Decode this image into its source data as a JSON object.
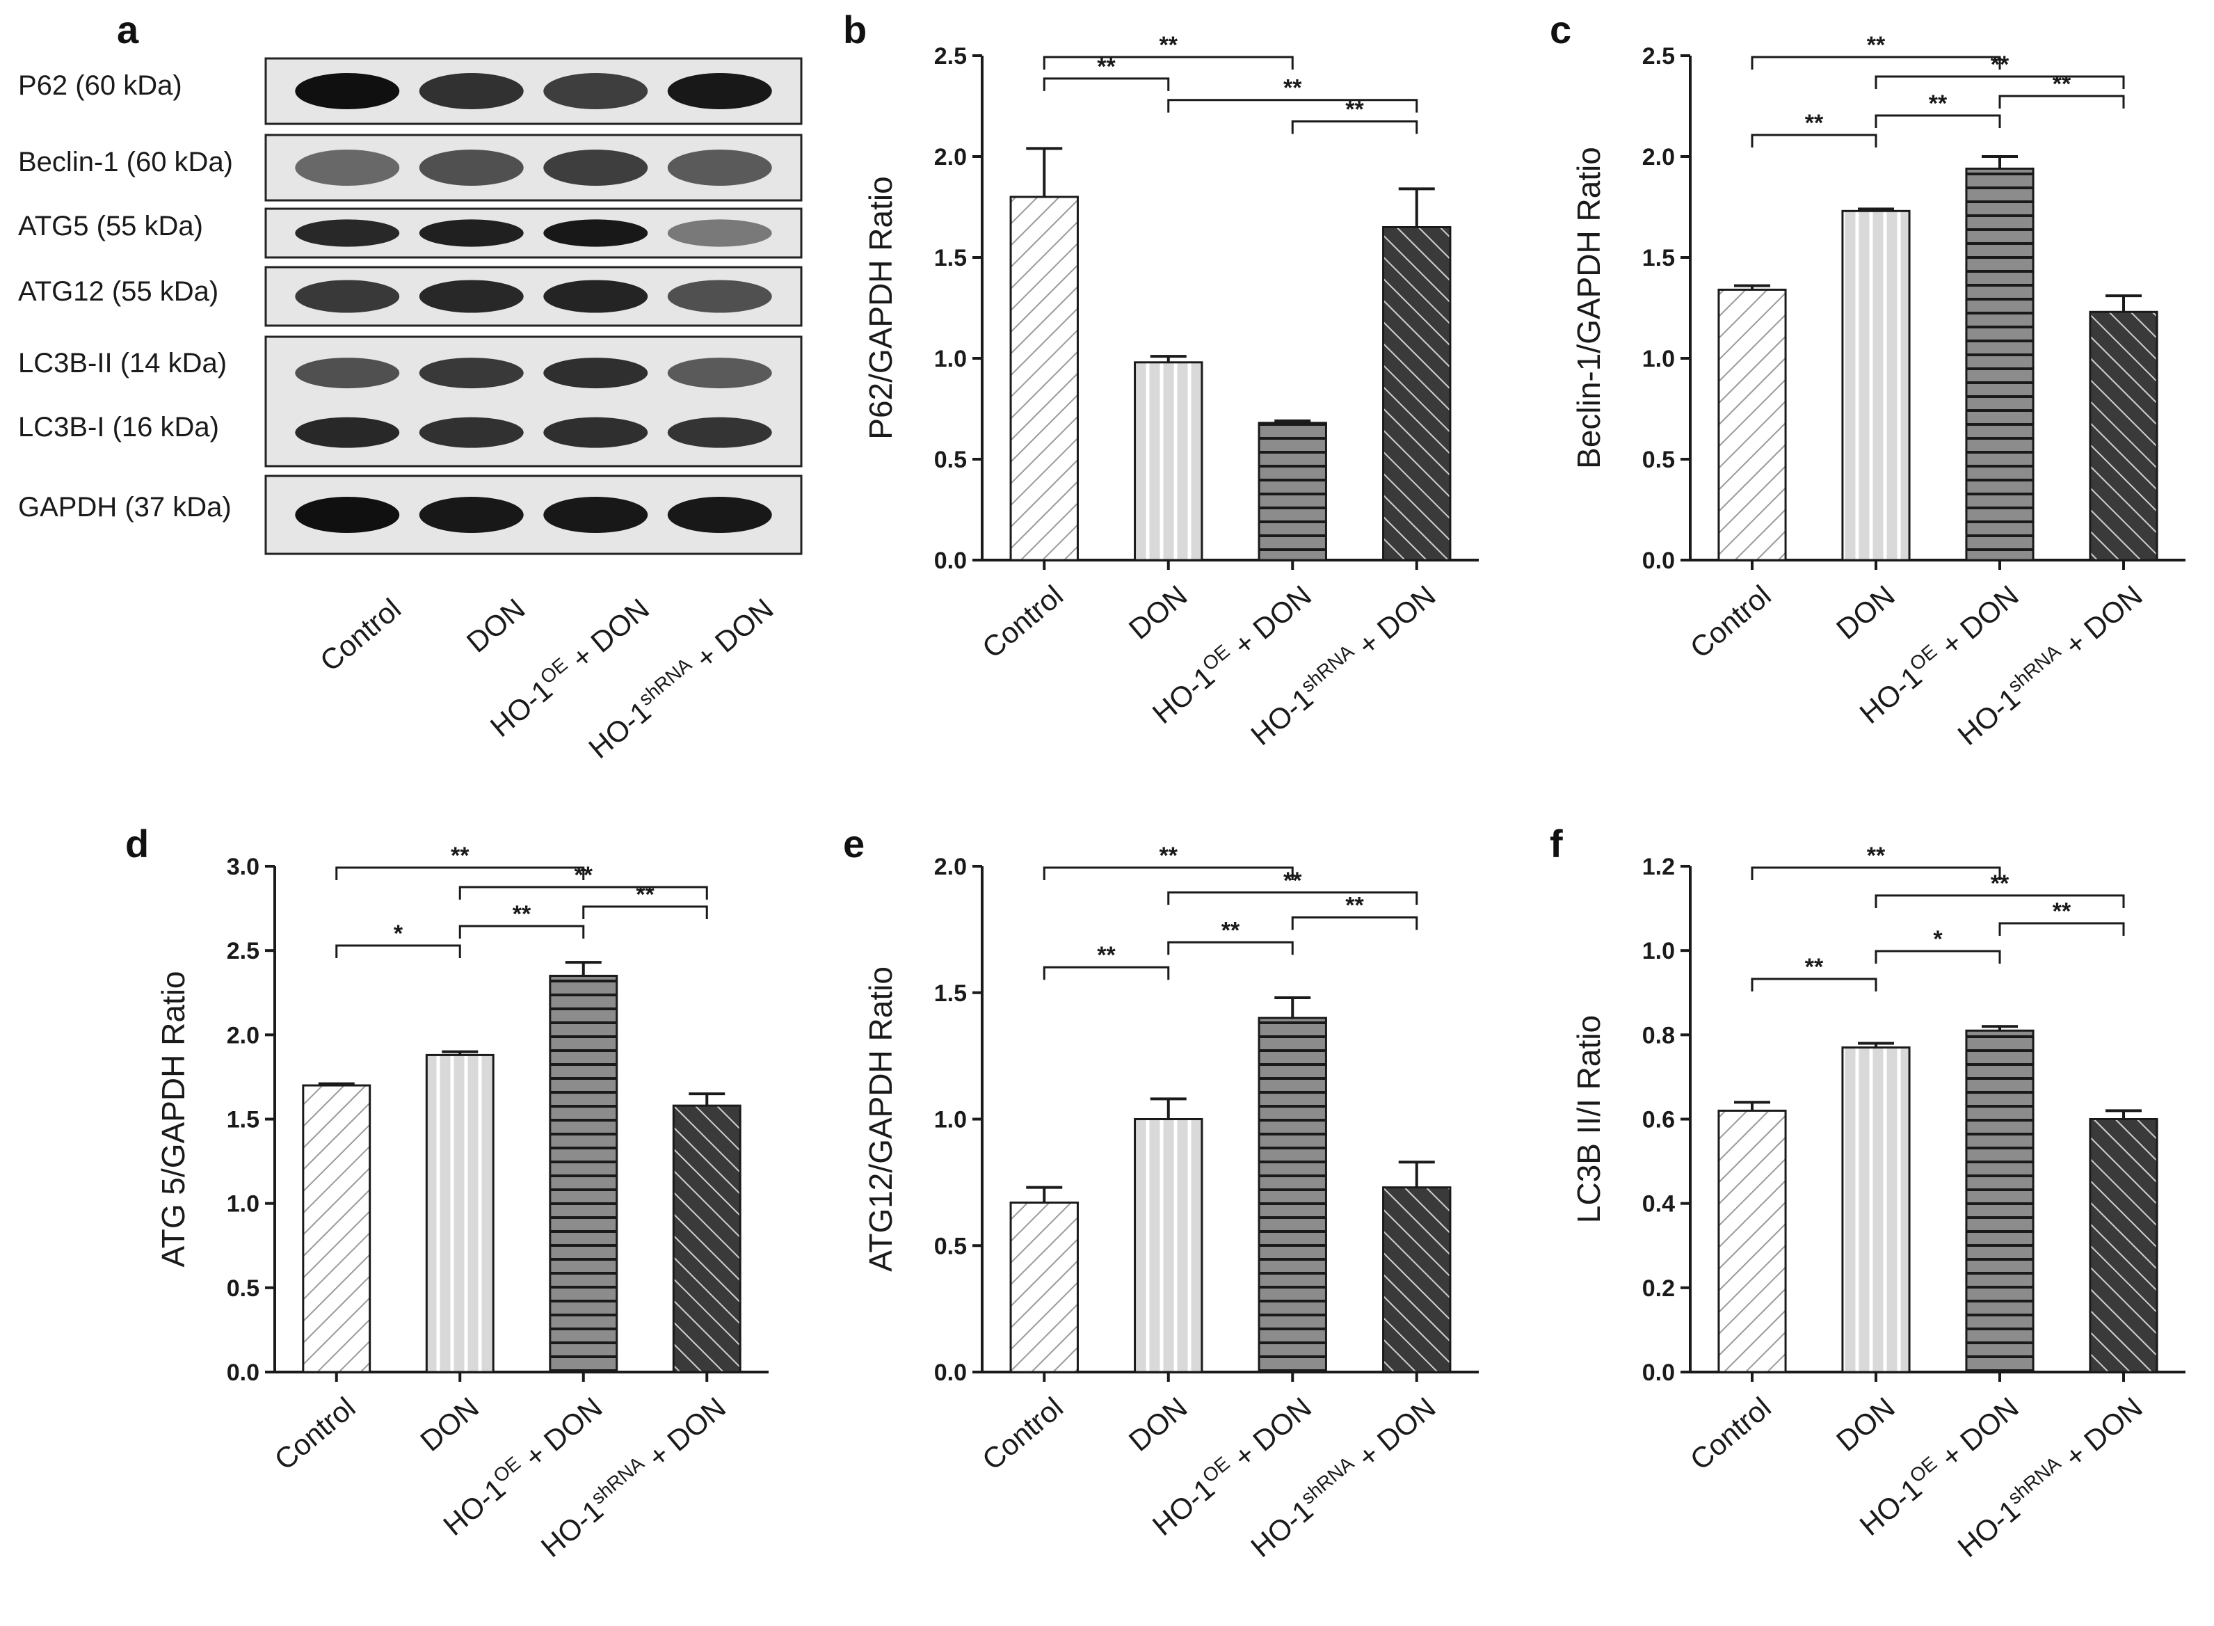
{
  "panels": {
    "a": "a",
    "b": "b",
    "c": "c",
    "d": "d",
    "e": "e",
    "f": "f"
  },
  "categories": [
    "Control",
    "DON",
    "HO-1OE + DON",
    "HO-1shRNA + DON"
  ],
  "category_parts": [
    {
      "base": "Control",
      "sup": "",
      "tail": ""
    },
    {
      "base": "DON",
      "sup": "",
      "tail": ""
    },
    {
      "base": "HO-1",
      "sup": "OE",
      "tail": " + DON"
    },
    {
      "base": "HO-1",
      "sup": "shRNA",
      "tail": " + DON"
    }
  ],
  "blot": {
    "lanes": 4,
    "bands": [
      {
        "label": "P62 (60 kDa)",
        "intensity": [
          1.0,
          0.8,
          0.72,
          0.95
        ]
      },
      {
        "label": "Beclin-1 (60 kDa)",
        "intensity": [
          0.45,
          0.6,
          0.72,
          0.55
        ]
      },
      {
        "label": "ATG5 (55 kDa)",
        "intensity": [
          0.85,
          0.9,
          0.95,
          0.35
        ]
      },
      {
        "label": "ATG12 (55 kDa)",
        "intensity": [
          0.75,
          0.85,
          0.88,
          0.6
        ]
      },
      {
        "label": "LC3B-II (14 kDa)",
        "intensity": [
          0.6,
          0.75,
          0.82,
          0.55
        ]
      },
      {
        "label": "LC3B-I (16 kDa)",
        "intensity": [
          0.85,
          0.8,
          0.82,
          0.78
        ]
      },
      {
        "label": "GAPDH (37 kDa)",
        "intensity": [
          1.0,
          0.95,
          0.95,
          0.95
        ]
      }
    ],
    "colors": {
      "background": "#e6e6e6",
      "band": "#101010",
      "frame": "#222222"
    }
  },
  "chart_data": [
    {
      "panel": "b",
      "type": "bar",
      "ylabel": "P62/GAPDH Ratio",
      "categories": [
        "Control",
        "DON",
        "HO-1OE + DON",
        "HO-1shRNA + DON"
      ],
      "values": [
        1.8,
        0.98,
        0.68,
        1.65
      ],
      "errors": [
        0.24,
        0.03,
        0.01,
        0.19
      ],
      "ylim": [
        0,
        2.5
      ],
      "yticks": [
        "0.0",
        "0.5",
        "1.0",
        "1.5",
        "2.0",
        "2.5"
      ],
      "significance": [
        {
          "from": 0,
          "to": 2,
          "label": "**"
        },
        {
          "from": 0,
          "to": 1,
          "label": "**"
        },
        {
          "from": 1,
          "to": 3,
          "label": "**"
        },
        {
          "from": 2,
          "to": 3,
          "label": "**"
        }
      ]
    },
    {
      "panel": "c",
      "type": "bar",
      "ylabel": "Beclin-1/GAPDH Ratio",
      "categories": [
        "Control",
        "DON",
        "HO-1OE + DON",
        "HO-1shRNA + DON"
      ],
      "values": [
        1.34,
        1.73,
        1.94,
        1.23
      ],
      "errors": [
        0.02,
        0.01,
        0.06,
        0.08
      ],
      "ylim": [
        0,
        2.5
      ],
      "yticks": [
        "0.0",
        "0.5",
        "1.0",
        "1.5",
        "2.0",
        "2.5"
      ],
      "significance": [
        {
          "from": 0,
          "to": 2,
          "label": "**"
        },
        {
          "from": 1,
          "to": 3,
          "label": "**"
        },
        {
          "from": 2,
          "to": 3,
          "label": "**"
        },
        {
          "from": 1,
          "to": 2,
          "label": "**"
        },
        {
          "from": 0,
          "to": 1,
          "label": "**"
        }
      ]
    },
    {
      "panel": "d",
      "type": "bar",
      "ylabel": "ATG 5/GAPDH Ratio",
      "categories": [
        "Control",
        "DON",
        "HO-1OE + DON",
        "HO-1shRNA + DON"
      ],
      "values": [
        1.7,
        1.88,
        2.35,
        1.58
      ],
      "errors": [
        0.01,
        0.02,
        0.08,
        0.07
      ],
      "ylim": [
        0,
        3.0
      ],
      "yticks": [
        "0.0",
        "0.5",
        "1.0",
        "1.5",
        "2.0",
        "2.5",
        "3.0"
      ],
      "significance": [
        {
          "from": 0,
          "to": 2,
          "label": "**"
        },
        {
          "from": 1,
          "to": 3,
          "label": "**"
        },
        {
          "from": 2,
          "to": 3,
          "label": "**"
        },
        {
          "from": 1,
          "to": 2,
          "label": "**"
        },
        {
          "from": 0,
          "to": 1,
          "label": "*"
        }
      ]
    },
    {
      "panel": "e",
      "type": "bar",
      "ylabel": "ATG12/GAPDH Ratio",
      "categories": [
        "Control",
        "DON",
        "HO-1OE + DON",
        "HO-1shRNA + DON"
      ],
      "values": [
        0.67,
        1.0,
        1.4,
        0.73
      ],
      "errors": [
        0.06,
        0.08,
        0.08,
        0.1
      ],
      "ylim": [
        0,
        2.0
      ],
      "yticks": [
        "0.0",
        "0.5",
        "1.0",
        "1.5",
        "2.0"
      ],
      "significance": [
        {
          "from": 0,
          "to": 2,
          "label": "**"
        },
        {
          "from": 1,
          "to": 3,
          "label": "**"
        },
        {
          "from": 2,
          "to": 3,
          "label": "**"
        },
        {
          "from": 1,
          "to": 2,
          "label": "**"
        },
        {
          "from": 0,
          "to": 1,
          "label": "**"
        }
      ]
    },
    {
      "panel": "f",
      "type": "bar",
      "ylabel": "LC3B II/I Ratio",
      "categories": [
        "Control",
        "DON",
        "HO-1OE + DON",
        "HO-1shRNA + DON"
      ],
      "values": [
        0.62,
        0.77,
        0.81,
        0.6
      ],
      "errors": [
        0.02,
        0.01,
        0.01,
        0.02
      ],
      "ylim": [
        0,
        1.2
      ],
      "yticks": [
        "0.0",
        "0.2",
        "0.4",
        "0.6",
        "0.8",
        "1.0",
        "1.2"
      ],
      "significance": [
        {
          "from": 0,
          "to": 2,
          "label": "**"
        },
        {
          "from": 1,
          "to": 3,
          "label": "**"
        },
        {
          "from": 2,
          "to": 3,
          "label": "**"
        },
        {
          "from": 1,
          "to": 2,
          "label": "*"
        },
        {
          "from": 0,
          "to": 1,
          "label": "**"
        }
      ]
    }
  ],
  "colors": {
    "axis": "#1a1a1a",
    "bar_control": "#ffffff",
    "bar_don": "#d9d9d9",
    "bar_oe": "#8c8c8c",
    "bar_shrna": "#3a3a3a",
    "hatch_control": "#9a9a9a",
    "hatch_don": "#ffffff",
    "hatch_oe": "#1a1a1a",
    "hatch_shrna": "#d0d0d0"
  }
}
